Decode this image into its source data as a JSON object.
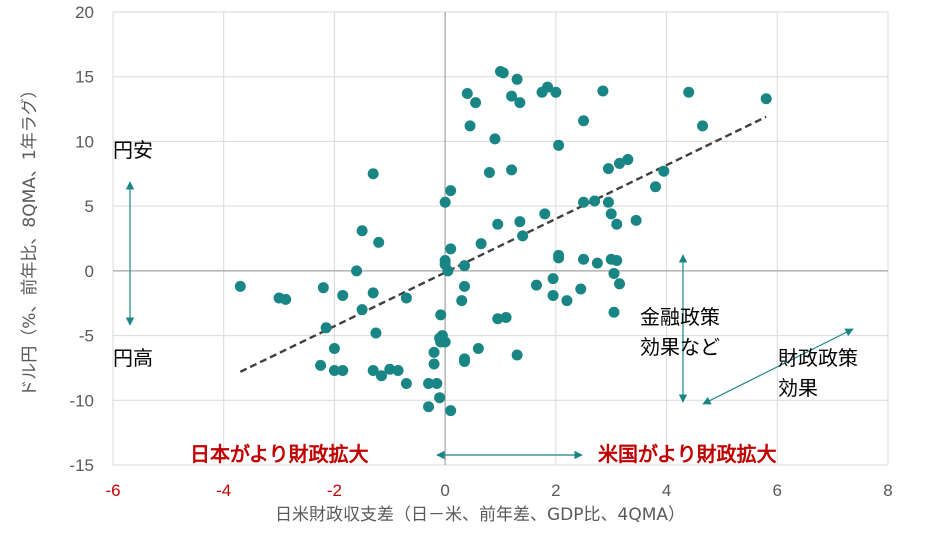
{
  "chart_data": {
    "type": "scatter",
    "xlabel": "日米財政収支差（日－米、前年差、GDP比、4QMA）",
    "ylabel": "ドル円（%、前年比、8QMA、1年ラグ）",
    "xlim": [
      -6,
      8
    ],
    "ylim": [
      -15,
      20
    ],
    "x_ticks": [
      -6,
      -4,
      -2,
      0,
      2,
      4,
      6,
      8
    ],
    "x_tick_labels": [
      "-6",
      "-4",
      "-2",
      "0",
      "2",
      "4",
      "6",
      "8"
    ],
    "y_ticks": [
      -15,
      -10,
      -5,
      0,
      5,
      10,
      15,
      20
    ],
    "y_tick_labels": [
      "-15",
      "-10",
      "-5",
      "0",
      "5",
      "10",
      "15",
      "20"
    ],
    "grid": true,
    "colors": {
      "points": "#1a8585",
      "trendline": "#404040",
      "arrows": "#1a8585",
      "negative_tick": "#c00000",
      "red_annotation": "#c00000"
    },
    "trendline": {
      "x": [
        -3.7,
        5.8
      ],
      "y": [
        -7.8,
        11.9
      ],
      "style": "dashed"
    },
    "annotations": {
      "yen_weak": "円安",
      "yen_strong": "円高",
      "japan_fiscal": "日本がより財政拡大",
      "us_fiscal": "米国がより財政拡大",
      "monetary_line1": "金融政策",
      "monetary_line2": "効果など",
      "fiscal_line1": "財政政策",
      "fiscal_line2": "効果"
    },
    "points": [
      [
        -3.7,
        -1.2
      ],
      [
        -3.0,
        -2.1
      ],
      [
        -2.88,
        -2.2
      ],
      [
        -2.2,
        -1.3
      ],
      [
        -2.15,
        -4.4
      ],
      [
        -2.25,
        -7.3
      ],
      [
        -2.0,
        -6.0
      ],
      [
        -2.0,
        -7.7
      ],
      [
        -1.85,
        -1.9
      ],
      [
        -1.85,
        -7.7
      ],
      [
        -1.6,
        0.0
      ],
      [
        -1.5,
        3.1
      ],
      [
        -1.5,
        -3.0
      ],
      [
        -1.3,
        7.5
      ],
      [
        -1.3,
        -1.7
      ],
      [
        -1.3,
        -7.7
      ],
      [
        -1.25,
        -4.8
      ],
      [
        -1.2,
        2.2
      ],
      [
        -1.15,
        -8.1
      ],
      [
        -1.0,
        -7.6
      ],
      [
        -0.85,
        -7.7
      ],
      [
        -0.7,
        -8.7
      ],
      [
        -0.7,
        -2.1
      ],
      [
        -0.3,
        -10.5
      ],
      [
        -0.3,
        -8.7
      ],
      [
        -0.2,
        -7.2
      ],
      [
        -0.2,
        -6.3
      ],
      [
        -0.15,
        -8.7
      ],
      [
        -0.1,
        -9.8
      ],
      [
        -0.1,
        -5.2
      ],
      [
        -0.08,
        -5.5
      ],
      [
        -0.05,
        -5.0
      ],
      [
        -0.08,
        -3.4
      ],
      [
        0.0,
        -5.5
      ],
      [
        0.0,
        5.3
      ],
      [
        0.0,
        0.8
      ],
      [
        0.0,
        0.5
      ],
      [
        0.05,
        0.0
      ],
      [
        0.1,
        1.7
      ],
      [
        0.1,
        6.2
      ],
      [
        0.1,
        -10.8
      ],
      [
        0.3,
        -2.3
      ],
      [
        0.35,
        -1.2
      ],
      [
        0.35,
        0.4
      ],
      [
        0.35,
        -6.8
      ],
      [
        0.35,
        -7.0
      ],
      [
        0.4,
        13.7
      ],
      [
        0.45,
        11.2
      ],
      [
        0.55,
        13.0
      ],
      [
        0.6,
        -6.0
      ],
      [
        0.65,
        2.1
      ],
      [
        0.8,
        7.6
      ],
      [
        0.9,
        10.2
      ],
      [
        0.95,
        3.6
      ],
      [
        0.95,
        -3.7
      ],
      [
        1.0,
        15.4
      ],
      [
        1.05,
        15.3
      ],
      [
        1.1,
        -3.6
      ],
      [
        1.2,
        13.5
      ],
      [
        1.2,
        7.8
      ],
      [
        1.3,
        14.8
      ],
      [
        1.35,
        13.0
      ],
      [
        1.35,
        3.8
      ],
      [
        1.4,
        2.7
      ],
      [
        1.3,
        -6.5
      ],
      [
        1.65,
        -1.1
      ],
      [
        1.75,
        13.8
      ],
      [
        1.8,
        4.4
      ],
      [
        1.85,
        14.2
      ],
      [
        1.95,
        -1.9
      ],
      [
        1.95,
        -0.6
      ],
      [
        2.0,
        13.8
      ],
      [
        2.05,
        9.7
      ],
      [
        2.05,
        1.0
      ],
      [
        2.05,
        1.2
      ],
      [
        2.2,
        -2.3
      ],
      [
        2.45,
        -1.4
      ],
      [
        2.5,
        0.9
      ],
      [
        2.5,
        11.6
      ],
      [
        2.5,
        5.3
      ],
      [
        2.7,
        5.4
      ],
      [
        2.75,
        0.6
      ],
      [
        2.85,
        13.9
      ],
      [
        2.95,
        7.9
      ],
      [
        2.95,
        5.3
      ],
      [
        3.0,
        4.4
      ],
      [
        3.0,
        0.9
      ],
      [
        3.05,
        -0.2
      ],
      [
        3.05,
        -3.2
      ],
      [
        3.1,
        3.6
      ],
      [
        3.1,
        0.8
      ],
      [
        3.15,
        -1.0
      ],
      [
        3.15,
        8.3
      ],
      [
        3.3,
        8.6
      ],
      [
        3.45,
        3.9
      ],
      [
        3.8,
        6.5
      ],
      [
        3.95,
        7.7
      ],
      [
        4.4,
        13.8
      ],
      [
        4.65,
        11.2
      ],
      [
        5.8,
        13.3
      ]
    ]
  }
}
